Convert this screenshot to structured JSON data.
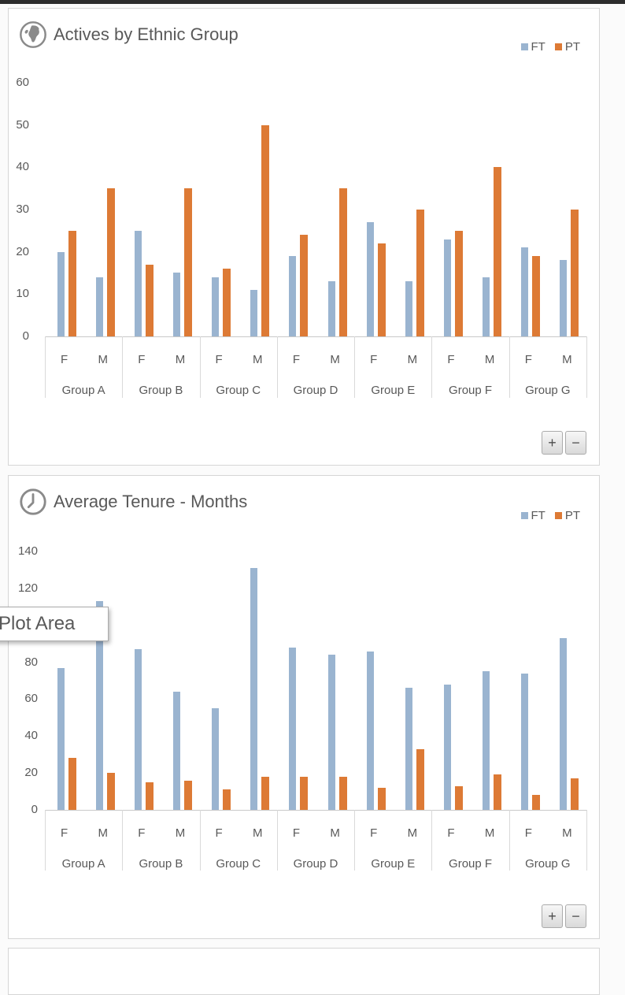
{
  "controls": {
    "zoom_in": "+",
    "zoom_out": "−"
  },
  "tooltip": {
    "text": "Plot Area"
  },
  "panels": [
    {
      "title": "Actives by Ethnic Group",
      "icon": "globe-icon"
    },
    {
      "title": "Average Tenure - Months",
      "icon": "clock-icon"
    }
  ],
  "chart_data": [
    {
      "type": "bar",
      "title": "Actives by Ethnic Group",
      "groups": [
        "Group A",
        "Group B",
        "Group C",
        "Group D",
        "Group E",
        "Group F",
        "Group G"
      ],
      "subcategories": [
        "F",
        "M"
      ],
      "categories": [
        "Group A F",
        "Group A M",
        "Group B F",
        "Group B M",
        "Group C F",
        "Group C M",
        "Group D F",
        "Group D M",
        "Group E F",
        "Group E M",
        "Group F F",
        "Group F M",
        "Group G F",
        "Group G M"
      ],
      "series": [
        {
          "name": "FT",
          "color": "#9AB4D0",
          "values": [
            20,
            14,
            25,
            15,
            14,
            11,
            19,
            13,
            27,
            13,
            23,
            14,
            21,
            18
          ]
        },
        {
          "name": "PT",
          "color": "#DD7A35",
          "values": [
            25,
            35,
            17,
            35,
            16,
            50,
            24,
            35,
            22,
            30,
            25,
            40,
            19,
            30
          ]
        }
      ],
      "xlabel": "",
      "ylabel": "",
      "ylim": [
        0,
        60
      ],
      "ytick_step": 10,
      "grid": false,
      "legend_position": "top-right"
    },
    {
      "type": "bar",
      "title": "Average Tenure - Months",
      "groups": [
        "Group A",
        "Group B",
        "Group C",
        "Group D",
        "Group E",
        "Group F",
        "Group G"
      ],
      "subcategories": [
        "F",
        "M"
      ],
      "categories": [
        "Group A F",
        "Group A M",
        "Group B F",
        "Group B M",
        "Group C F",
        "Group C M",
        "Group D F",
        "Group D M",
        "Group E F",
        "Group E M",
        "Group F F",
        "Group F M",
        "Group G F",
        "Group G M"
      ],
      "series": [
        {
          "name": "FT",
          "color": "#9AB4D0",
          "values": [
            77,
            113,
            87,
            64,
            55,
            131,
            88,
            84,
            86,
            66,
            68,
            75,
            74,
            93
          ]
        },
        {
          "name": "PT",
          "color": "#DD7A35",
          "values": [
            28,
            20,
            15,
            16,
            11,
            18,
            18,
            18,
            12,
            33,
            13,
            19,
            8,
            17
          ]
        }
      ],
      "xlabel": "",
      "ylabel": "",
      "ylim": [
        0,
        140
      ],
      "ytick_step": 20,
      "grid": false,
      "legend_position": "top-right"
    }
  ]
}
